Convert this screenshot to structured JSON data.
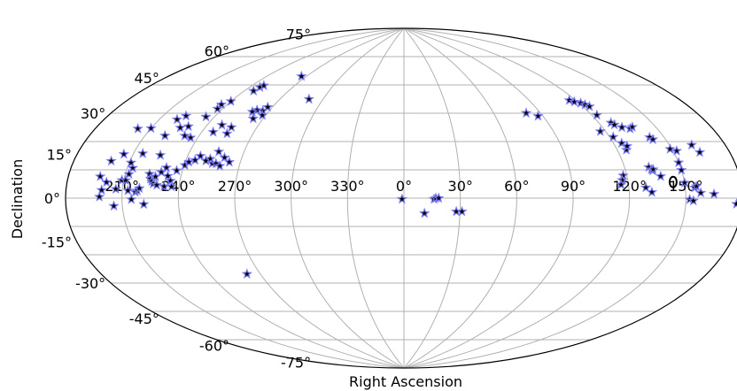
{
  "chart_data": {
    "type": "scatter",
    "projection": "aitoff",
    "title": "",
    "xlabel": "Right Ascension",
    "ylabel": "Declination",
    "grid": true,
    "ra_tick_labels": [
      "210°",
      "240°",
      "270°",
      "300°",
      "330°",
      "0°",
      "30°",
      "60°",
      "90°",
      "120°",
      "150°"
    ],
    "dec_tick_labels": [
      "-75°",
      "-60°",
      "-45°",
      "-30°",
      "-15°",
      "0°",
      "15°",
      "30°",
      "45°",
      "60°",
      "75°"
    ],
    "marker_color": "#7b7bf0",
    "marker_edge_color": "#000000",
    "points": [
      {
        "ra": 236.5,
        "dec": 42.0
      },
      {
        "ra": 240.0,
        "dec": 44.0
      },
      {
        "ra": 246.0,
        "dec": 50.0
      },
      {
        "ra": 247.0,
        "dec": 52.0
      },
      {
        "ra": 248.0,
        "dec": 53.0
      },
      {
        "ra": 230.0,
        "dec": 31.0
      },
      {
        "ra": 235.0,
        "dec": 36.0
      },
      {
        "ra": 237.0,
        "dec": 40.0
      },
      {
        "ra": 248.5,
        "dec": 33.5
      },
      {
        "ra": 246.5,
        "dec": 30.0
      },
      {
        "ra": 255.0,
        "dec": 33.0
      },
      {
        "ra": 255.0,
        "dec": 30.0
      },
      {
        "ra": 267.0,
        "dec": 44.0
      },
      {
        "ra": 266.0,
        "dec": 42.0
      },
      {
        "ra": 262.0,
        "dec": 42.0
      },
      {
        "ra": 260.0,
        "dec": 41.0
      },
      {
        "ra": 264.0,
        "dec": 38.0
      },
      {
        "ra": 268.0,
        "dec": 40.0
      },
      {
        "ra": 290.0,
        "dec": 50.0
      },
      {
        "ra": 266.0,
        "dec": 60.0
      },
      {
        "ra": 200.0,
        "dec": 14.0
      },
      {
        "ra": 197.0,
        "dec": 8.0
      },
      {
        "ra": 199.0,
        "dec": 3.0
      },
      {
        "ra": 198.0,
        "dec": 0.5
      },
      {
        "ra": 201.0,
        "dec": 6.0
      },
      {
        "ra": 206.5,
        "dec": 3.5
      },
      {
        "ra": 209.0,
        "dec": 7.0
      },
      {
        "ra": 212.0,
        "dec": 9.5
      },
      {
        "ra": 211.0,
        "dec": 7.0
      },
      {
        "ra": 213.0,
        "dec": 3.0
      },
      {
        "ra": 215.0,
        "dec": -0.5
      },
      {
        "ra": 217.0,
        "dec": 2.5
      },
      {
        "ra": 218.0,
        "dec": 3.0
      },
      {
        "ra": 219.0,
        "dec": 4.0
      },
      {
        "ra": 223.0,
        "dec": 10.0
      },
      {
        "ra": 224.0,
        "dec": 8.0
      },
      {
        "ra": 225.0,
        "dec": 7.0
      },
      {
        "ra": 226.0,
        "dec": 6.0
      },
      {
        "ra": 228.0,
        "dec": 5.5
      },
      {
        "ra": 226.5,
        "dec": 9.0
      },
      {
        "ra": 229.0,
        "dec": 11.0
      },
      {
        "ra": 231.0,
        "dec": 13.0
      },
      {
        "ra": 233.0,
        "dec": 9.5
      },
      {
        "ra": 232.0,
        "dec": 5.0
      },
      {
        "ra": 235.0,
        "dec": 7.5
      },
      {
        "ra": 236.0,
        "dec": 5.0
      },
      {
        "ra": 240.5,
        "dec": 14.5
      },
      {
        "ra": 242.0,
        "dec": 16.0
      },
      {
        "ra": 245.0,
        "dec": 17.0
      },
      {
        "ra": 247.0,
        "dec": 19.0
      },
      {
        "ra": 251.0,
        "dec": 17.0
      },
      {
        "ra": 253.0,
        "dec": 18.0
      },
      {
        "ra": 255.0,
        "dec": 16.0
      },
      {
        "ra": 257.0,
        "dec": 16.0
      },
      {
        "ra": 259.5,
        "dec": 15.0
      },
      {
        "ra": 260.5,
        "dec": 19.0
      },
      {
        "ra": 256.0,
        "dec": 21.5
      },
      {
        "ra": 264.0,
        "dec": 17.0
      },
      {
        "ra": 237.0,
        "dec": 12.0
      },
      {
        "ra": 205.0,
        "dec": 17.0
      },
      {
        "ra": 215.0,
        "dec": 18.0
      },
      {
        "ra": 213.0,
        "dec": 12.0
      },
      {
        "ra": 211.0,
        "dec": 14.0
      },
      {
        "ra": 203.0,
        "dec": 27.0
      },
      {
        "ra": 210.0,
        "dec": 28.0
      },
      {
        "ra": 220.0,
        "dec": 33.0
      },
      {
        "ra": 223.0,
        "dec": 35.0
      },
      {
        "ra": 226.0,
        "dec": 30.0
      },
      {
        "ra": 221.0,
        "dec": 26.0
      },
      {
        "ra": 232.0,
        "dec": 27.0
      },
      {
        "ra": 236.0,
        "dec": 26.5
      },
      {
        "ra": 225.0,
        "dec": 18.0
      },
      {
        "ra": 205.5,
        "dec": -3.0
      },
      {
        "ra": 221.5,
        "dec": -2.5
      },
      {
        "ra": 262.0,
        "dec": -36.0
      },
      {
        "ra": 359.0,
        "dec": -0.5
      },
      {
        "ra": 11.0,
        "dec": -8.0
      },
      {
        "ra": 16.0,
        "dec": -0.5
      },
      {
        "ra": 17.0,
        "dec": 0.0
      },
      {
        "ra": 18.5,
        "dec": 0.0
      },
      {
        "ra": 28.0,
        "dec": -7.0
      },
      {
        "ra": 31.0,
        "dec": -7.0
      },
      {
        "ra": 81.0,
        "dec": 42.0
      },
      {
        "ra": 87.0,
        "dec": 40.0
      },
      {
        "ra": 116.0,
        "dec": 45.0
      },
      {
        "ra": 118.0,
        "dec": 44.0
      },
      {
        "ra": 121.0,
        "dec": 43.0
      },
      {
        "ra": 122.5,
        "dec": 42.0
      },
      {
        "ra": 124.0,
        "dec": 41.0
      },
      {
        "ra": 123.0,
        "dec": 37.0
      },
      {
        "ra": 127.0,
        "dec": 33.0
      },
      {
        "ra": 128.0,
        "dec": 32.0
      },
      {
        "ra": 131.0,
        "dec": 30.5
      },
      {
        "ra": 135.0,
        "dec": 29.5
      },
      {
        "ra": 137.0,
        "dec": 30.0
      },
      {
        "ra": 117.0,
        "dec": 30.0
      },
      {
        "ra": 122.0,
        "dec": 27.0
      },
      {
        "ra": 124.5,
        "dec": 24.0
      },
      {
        "ra": 125.0,
        "dec": 21.0
      },
      {
        "ra": 126.5,
        "dec": 22.5
      },
      {
        "ra": 142.0,
        "dec": 25.0
      },
      {
        "ra": 143.0,
        "dec": 24.0
      },
      {
        "ra": 149.0,
        "dec": 19.5
      },
      {
        "ra": 152.0,
        "dec": 18.5
      },
      {
        "ra": 162.0,
        "dec": 20.0
      },
      {
        "ra": 164.0,
        "dec": 17.0
      },
      {
        "ra": 150.0,
        "dec": 14.0
      },
      {
        "ra": 150.0,
        "dec": 11.0
      },
      {
        "ra": 118.0,
        "dec": 10.0
      },
      {
        "ra": 117.0,
        "dec": 8.0
      },
      {
        "ra": 116.0,
        "dec": 6.0
      },
      {
        "ra": 133.0,
        "dec": 13.0
      },
      {
        "ra": 134.0,
        "dec": 12.0
      },
      {
        "ra": 134.5,
        "dec": 11.5
      },
      {
        "ra": 135.0,
        "dec": 12.0
      },
      {
        "ra": 138.0,
        "dec": 9.0
      },
      {
        "ra": 129.0,
        "dec": 4.5
      },
      {
        "ra": 132.0,
        "dec": 2.5
      },
      {
        "ra": 150.0,
        "dec": 6.0
      },
      {
        "ra": 155.0,
        "dec": 4.0
      },
      {
        "ra": 156.0,
        "dec": 4.5
      },
      {
        "ra": 158.0,
        "dec": 2.0
      },
      {
        "ra": 152.0,
        "dec": -0.5
      },
      {
        "ra": 154.0,
        "dec": -1.0
      },
      {
        "ra": 165.0,
        "dec": 1.5
      },
      {
        "ra": 177.0,
        "dec": -2.0
      }
    ],
    "circle_marker": {
      "ra": 144.0,
      "dec": 6.5
    }
  }
}
